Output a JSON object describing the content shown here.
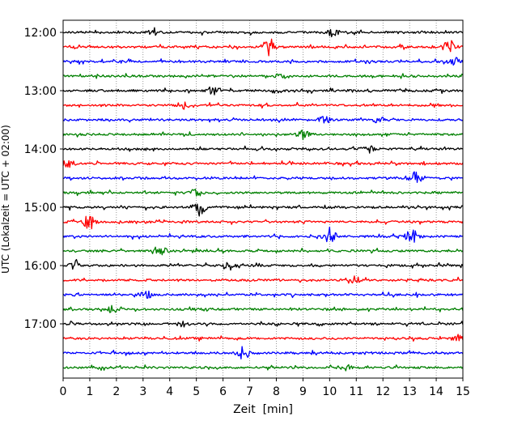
{
  "chart_data": {
    "type": "line",
    "title": "",
    "xlabel": "Zeit  [min]",
    "ylabel": "UTC (Lokalzeit = UTC + 02:00)",
    "xlim": [
      0,
      15
    ],
    "x_ticks": [
      "0",
      "1",
      "2",
      "3",
      "4",
      "5",
      "6",
      "7",
      "8",
      "9",
      "10",
      "11",
      "12",
      "13",
      "14",
      "15"
    ],
    "y_ticks": [
      "12:00",
      "13:00",
      "14:00",
      "15:00",
      "16:00",
      "17:00"
    ],
    "grid": "vertical dotted lines at each minute",
    "trace_interval_min": 15,
    "trace_start": "12:00",
    "colors": [
      "#000000",
      "#ff0000",
      "#0000ff",
      "#008000"
    ],
    "series": [
      {
        "start": "12:00",
        "color": "#000000",
        "events": [
          [
            3.4,
            0.7
          ],
          [
            10.1,
            0.6
          ]
        ]
      },
      {
        "start": "12:15",
        "color": "#ff0000",
        "events": [
          [
            7.7,
            1.3
          ],
          [
            14.5,
            1.2
          ]
        ]
      },
      {
        "start": "12:30",
        "color": "#0000ff",
        "events": [
          [
            14.7,
            0.6
          ]
        ]
      },
      {
        "start": "12:45",
        "color": "#008000",
        "events": [
          [
            8.2,
            0.5
          ]
        ]
      },
      {
        "start": "13:00",
        "color": "#000000",
        "events": [
          [
            5.6,
            0.7
          ]
        ]
      },
      {
        "start": "13:15",
        "color": "#ff0000",
        "events": [
          [
            4.5,
            0.5
          ]
        ]
      },
      {
        "start": "13:30",
        "color": "#0000ff",
        "events": [
          [
            9.8,
            0.6
          ],
          [
            11.8,
            0.5
          ]
        ]
      },
      {
        "start": "13:45",
        "color": "#008000",
        "events": [
          [
            9.0,
            0.7
          ]
        ]
      },
      {
        "start": "14:00",
        "color": "#000000",
        "events": [
          [
            11.4,
            0.8
          ]
        ]
      },
      {
        "start": "14:15",
        "color": "#ff0000",
        "events": [
          [
            0.2,
            0.7
          ]
        ]
      },
      {
        "start": "14:30",
        "color": "#0000ff",
        "events": [
          [
            13.2,
            1.1
          ]
        ]
      },
      {
        "start": "14:45",
        "color": "#008000",
        "events": [
          [
            5.0,
            0.6
          ]
        ]
      },
      {
        "start": "15:00",
        "color": "#000000",
        "events": [
          [
            5.1,
            1.3
          ]
        ]
      },
      {
        "start": "15:15",
        "color": "#ff0000",
        "events": [
          [
            1.0,
            1.3
          ]
        ]
      },
      {
        "start": "15:30",
        "color": "#0000ff",
        "events": [
          [
            10.0,
            1.1
          ],
          [
            13.1,
            1.2
          ]
        ]
      },
      {
        "start": "15:45",
        "color": "#008000",
        "events": [
          [
            3.7,
            0.5
          ]
        ]
      },
      {
        "start": "16:00",
        "color": "#000000",
        "events": [
          [
            0.5,
            0.8
          ],
          [
            6.2,
            0.8
          ]
        ]
      },
      {
        "start": "16:15",
        "color": "#ff0000",
        "events": [
          [
            10.9,
            0.8
          ]
        ]
      },
      {
        "start": "16:30",
        "color": "#0000ff",
        "events": [
          [
            3.1,
            0.6
          ]
        ]
      },
      {
        "start": "16:45",
        "color": "#008000",
        "events": [
          [
            1.8,
            0.6
          ]
        ]
      },
      {
        "start": "17:00",
        "color": "#000000",
        "events": [
          [
            4.5,
            0.4
          ]
        ]
      },
      {
        "start": "17:15",
        "color": "#ff0000",
        "events": [
          [
            14.8,
            0.5
          ]
        ]
      },
      {
        "start": "17:30",
        "color": "#0000ff",
        "events": [
          [
            6.7,
            0.9
          ]
        ]
      },
      {
        "start": "17:45",
        "color": "#008000",
        "events": [
          [
            10.6,
            0.5
          ]
        ]
      }
    ]
  }
}
